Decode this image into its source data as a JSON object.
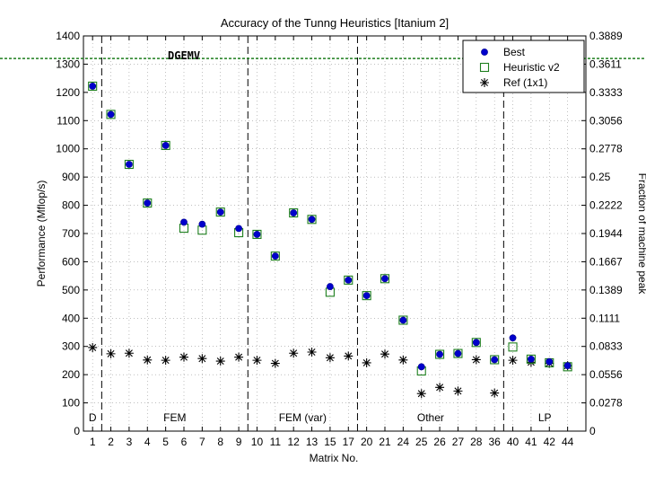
{
  "chart_data": {
    "type": "scatter",
    "title": "Accuracy of the Tunng Heuristics [Itanium 2]",
    "annotation": "DGEMV",
    "xlabel": "Matrix No.",
    "ylabel": "Performance (Mflop/s)",
    "y2label": "Fraction of machine peak",
    "categories": [
      "1",
      "2",
      "3",
      "4",
      "5",
      "6",
      "7",
      "8",
      "9",
      "10",
      "11",
      "12",
      "13",
      "15",
      "17",
      "20",
      "21",
      "24",
      "25",
      "26",
      "27",
      "28",
      "36",
      "40",
      "41",
      "42",
      "44"
    ],
    "ylim": [
      0,
      1400
    ],
    "yticks": [
      "0",
      "100",
      "200",
      "300",
      "400",
      "500",
      "600",
      "700",
      "800",
      "900",
      "1000",
      "1100",
      "1200",
      "1300",
      "1400"
    ],
    "y2ticks": [
      "0",
      "0.0278",
      "0.0556",
      "0.0833",
      "0.1111",
      "0.1389",
      "0.1667",
      "0.1944",
      "0.2222",
      "0.25",
      "0.2778",
      "0.3056",
      "0.3333",
      "0.3611",
      "0.3889"
    ],
    "grid": true,
    "legend_position": "top-right",
    "reference_line": {
      "y": 1320,
      "color": "#1e7f1e"
    },
    "groups": [
      {
        "label": "D",
        "start": 1,
        "end": 1
      },
      {
        "label": "FEM",
        "start": 2,
        "end": 9
      },
      {
        "label": "FEM (var)",
        "start": 10,
        "end": 17
      },
      {
        "label": "Other",
        "start": 20,
        "end": 36
      },
      {
        "label": "LP",
        "start": 40,
        "end": 44
      }
    ],
    "series": [
      {
        "name": "Best",
        "marker": "circle",
        "color": "#0000cc",
        "values": [
          1222,
          1122,
          945,
          808,
          1012,
          740,
          733,
          776,
          718,
          697,
          620,
          773,
          750,
          512,
          535,
          480,
          540,
          393,
          228,
          272,
          275,
          314,
          253,
          330,
          255,
          246,
          232
        ]
      },
      {
        "name": "Heuristic v2",
        "marker": "square",
        "color": "#1e7f1e",
        "values": [
          1222,
          1122,
          945,
          808,
          1012,
          719,
          712,
          776,
          703,
          697,
          620,
          773,
          750,
          492,
          535,
          480,
          540,
          393,
          213,
          272,
          275,
          314,
          253,
          298,
          255,
          242,
          228
        ]
      },
      {
        "name": "Ref (1x1)",
        "marker": "star",
        "color": "#000000",
        "values": [
          296,
          274,
          276,
          252,
          251,
          262,
          257,
          248,
          262,
          251,
          240,
          276,
          280,
          260,
          266,
          242,
          273,
          252,
          133,
          155,
          142,
          253,
          135,
          251,
          244,
          240,
          232
        ]
      }
    ]
  }
}
